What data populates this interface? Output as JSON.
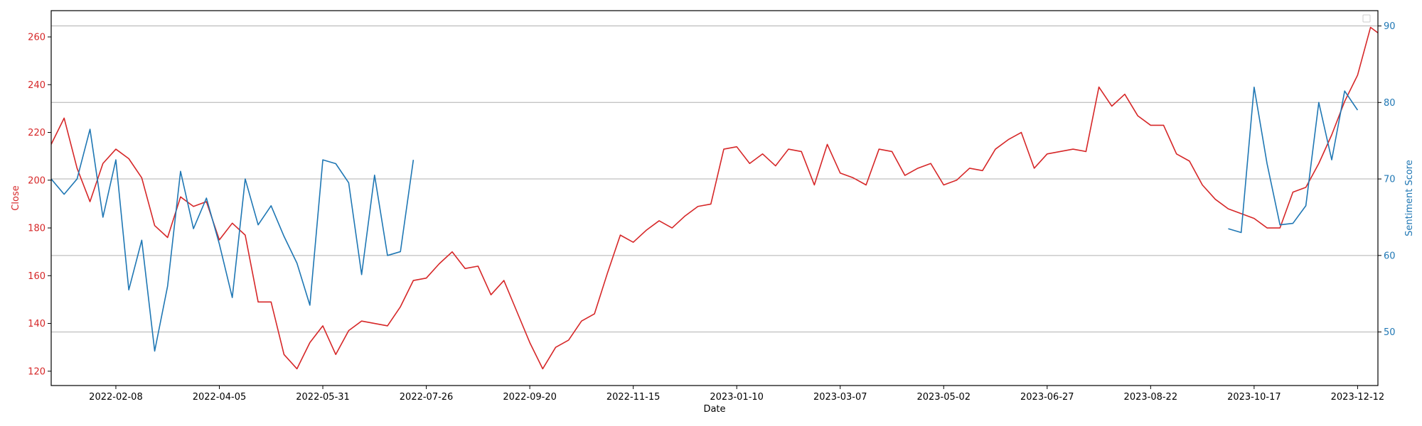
{
  "chart_data": {
    "type": "line",
    "xlabel": "Date",
    "x_ticks": [
      "2022-02-08",
      "2022-04-05",
      "2022-05-31",
      "2022-07-26",
      "2022-09-20",
      "2022-11-15",
      "2023-01-10",
      "2023-03-07",
      "2023-05-02",
      "2023-06-27",
      "2023-08-22",
      "2023-10-17",
      "2023-12-12"
    ],
    "xlim": [
      "2022-01-04",
      "2023-12-23"
    ],
    "grid": "horizontal (right axis)",
    "legend": "top-right (empty)",
    "left_axis": {
      "label": "Close",
      "color": "#d62728",
      "ylim": [
        114,
        271
      ],
      "ticks": [
        120,
        140,
        160,
        180,
        200,
        220,
        240,
        260
      ]
    },
    "right_axis": {
      "label": "Sentiment Score",
      "color": "#1f77b4",
      "ylim": [
        43,
        92
      ],
      "ticks": [
        50,
        60,
        70,
        80,
        90
      ]
    },
    "series": [
      {
        "name": "Close",
        "axis": "left",
        "color": "#d62728",
        "points": [
          [
            "2022-01-04",
            215
          ],
          [
            "2022-01-11",
            226
          ],
          [
            "2022-01-18",
            205
          ],
          [
            "2022-01-25",
            191
          ],
          [
            "2022-02-01",
            207
          ],
          [
            "2022-02-08",
            213
          ],
          [
            "2022-02-15",
            209
          ],
          [
            "2022-02-22",
            201
          ],
          [
            "2022-03-01",
            181
          ],
          [
            "2022-03-08",
            176
          ],
          [
            "2022-03-15",
            193
          ],
          [
            "2022-03-22",
            189
          ],
          [
            "2022-03-29",
            191
          ],
          [
            "2022-04-05",
            175
          ],
          [
            "2022-04-12",
            182
          ],
          [
            "2022-04-19",
            177
          ],
          [
            "2022-04-26",
            149
          ],
          [
            "2022-05-03",
            149
          ],
          [
            "2022-05-10",
            127
          ],
          [
            "2022-05-17",
            121
          ],
          [
            "2022-05-24",
            132
          ],
          [
            "2022-05-31",
            139
          ],
          [
            "2022-06-07",
            127
          ],
          [
            "2022-06-14",
            137
          ],
          [
            "2022-06-21",
            141
          ],
          [
            "2022-06-28",
            140
          ],
          [
            "2022-07-05",
            139
          ],
          [
            "2022-07-12",
            147
          ],
          [
            "2022-07-19",
            158
          ],
          [
            "2022-07-26",
            159
          ],
          [
            "2022-08-02",
            165
          ],
          [
            "2022-08-09",
            170
          ],
          [
            "2022-08-16",
            163
          ],
          [
            "2022-08-23",
            164
          ],
          [
            "2022-08-30",
            152
          ],
          [
            "2022-09-06",
            158
          ],
          [
            "2022-09-13",
            145
          ],
          [
            "2022-09-20",
            132
          ],
          [
            "2022-09-27",
            121
          ],
          [
            "2022-10-04",
            130
          ],
          [
            "2022-10-11",
            133
          ],
          [
            "2022-10-18",
            141
          ],
          [
            "2022-10-25",
            144
          ],
          [
            "2022-11-01",
            161
          ],
          [
            "2022-11-08",
            177
          ],
          [
            "2022-11-15",
            174
          ],
          [
            "2022-11-22",
            179
          ],
          [
            "2022-11-29",
            183
          ],
          [
            "2022-12-06",
            180
          ],
          [
            "2022-12-13",
            185
          ],
          [
            "2022-12-20",
            189
          ],
          [
            "2022-12-27",
            190
          ],
          [
            "2023-01-03",
            213
          ],
          [
            "2023-01-10",
            214
          ],
          [
            "2023-01-17",
            207
          ],
          [
            "2023-01-24",
            211
          ],
          [
            "2023-01-31",
            206
          ],
          [
            "2023-02-07",
            213
          ],
          [
            "2023-02-14",
            212
          ],
          [
            "2023-02-21",
            198
          ],
          [
            "2023-02-28",
            215
          ],
          [
            "2023-03-07",
            203
          ],
          [
            "2023-03-14",
            201
          ],
          [
            "2023-03-21",
            198
          ],
          [
            "2023-03-28",
            213
          ],
          [
            "2023-04-04",
            212
          ],
          [
            "2023-04-11",
            202
          ],
          [
            "2023-04-18",
            205
          ],
          [
            "2023-04-25",
            207
          ],
          [
            "2023-05-02",
            198
          ],
          [
            "2023-05-09",
            200
          ],
          [
            "2023-05-16",
            205
          ],
          [
            "2023-05-23",
            204
          ],
          [
            "2023-05-30",
            213
          ],
          [
            "2023-06-06",
            217
          ],
          [
            "2023-06-13",
            220
          ],
          [
            "2023-06-20",
            205
          ],
          [
            "2023-06-27",
            211
          ],
          [
            "2023-07-04",
            212
          ],
          [
            "2023-07-11",
            213
          ],
          [
            "2023-07-18",
            212
          ],
          [
            "2023-07-25",
            239
          ],
          [
            "2023-08-01",
            231
          ],
          [
            "2023-08-08",
            236
          ],
          [
            "2023-08-15",
            227
          ],
          [
            "2023-08-22",
            223
          ],
          [
            "2023-08-29",
            223
          ],
          [
            "2023-09-05",
            211
          ],
          [
            "2023-09-12",
            208
          ],
          [
            "2023-09-19",
            198
          ],
          [
            "2023-09-26",
            192
          ],
          [
            "2023-10-03",
            188
          ],
          [
            "2023-10-10",
            186
          ],
          [
            "2023-10-17",
            184
          ],
          [
            "2023-10-24",
            180
          ],
          [
            "2023-10-31",
            180
          ],
          [
            "2023-11-07",
            195
          ],
          [
            "2023-11-14",
            197
          ],
          [
            "2023-11-21",
            207
          ],
          [
            "2023-11-28",
            219
          ],
          [
            "2023-12-05",
            233
          ],
          [
            "2023-12-12",
            244
          ],
          [
            "2023-12-19",
            264
          ],
          [
            "2023-12-26",
            260
          ],
          [
            "2024-01-02",
            261
          ]
        ]
      },
      {
        "name": "Sentiment Score",
        "axis": "right",
        "color": "#1f77b4",
        "segments": [
          [
            [
              "2022-01-04",
              70
            ],
            [
              "2022-01-11",
              68
            ],
            [
              "2022-01-18",
              70
            ],
            [
              "2022-01-25",
              76.5
            ],
            [
              "2022-02-01",
              65
            ],
            [
              "2022-02-08",
              72.5
            ],
            [
              "2022-02-15",
              55.5
            ],
            [
              "2022-02-22",
              62
            ],
            [
              "2022-03-01",
              47.5
            ],
            [
              "2022-03-08",
              56
            ],
            [
              "2022-03-15",
              71
            ],
            [
              "2022-03-22",
              63.5
            ],
            [
              "2022-03-29",
              67.5
            ],
            [
              "2022-04-05",
              61.5
            ],
            [
              "2022-04-12",
              54.5
            ],
            [
              "2022-04-19",
              70
            ],
            [
              "2022-04-26",
              64
            ],
            [
              "2022-05-03",
              66.5
            ],
            [
              "2022-05-10",
              62.5
            ],
            [
              "2022-05-17",
              59
            ],
            [
              "2022-05-24",
              53.5
            ],
            [
              "2022-05-31",
              72.5
            ],
            [
              "2022-06-07",
              72
            ],
            [
              "2022-06-14",
              69.5
            ],
            [
              "2022-06-21",
              57.5
            ],
            [
              "2022-06-28",
              70.5
            ],
            [
              "2022-07-05",
              60
            ],
            [
              "2022-07-12",
              60.5
            ],
            [
              "2022-07-19",
              72.5
            ]
          ],
          [
            [
              "2023-10-03",
              63.5
            ],
            [
              "2023-10-10",
              63
            ],
            [
              "2023-10-17",
              82
            ],
            [
              "2023-10-24",
              72
            ],
            [
              "2023-10-31",
              64
            ],
            [
              "2023-11-07",
              64.2
            ],
            [
              "2023-11-14",
              66.5
            ],
            [
              "2023-11-21",
              80
            ],
            [
              "2023-11-28",
              72.5
            ],
            [
              "2023-12-05",
              81.5
            ],
            [
              "2023-12-12",
              79
            ]
          ]
        ]
      }
    ]
  }
}
